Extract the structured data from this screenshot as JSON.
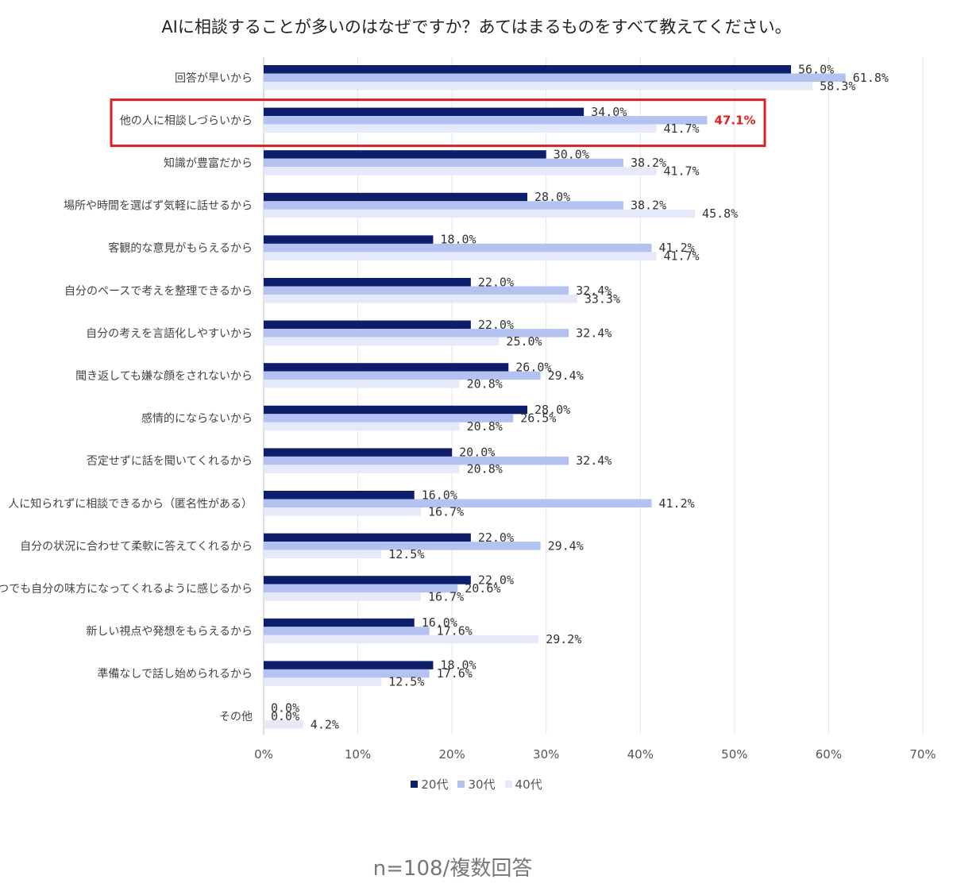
{
  "chart_data": {
    "type": "bar",
    "orientation": "horizontal",
    "title": "AIに相談することが多いのはなぜですか？あてはまるものをすべて教えてください。",
    "categories": [
      "回答が早いから",
      "他の人に相談しづらいから",
      "知識が豊富だから",
      "場所や時間を選ばず気軽に話せるから",
      "客観的な意見がもらえるから",
      "自分のペースで考えを整理できるから",
      "自分の考えを言語化しやすいから",
      "聞き返しても嫌な顔をされないから",
      "感情的にならないから",
      "否定せずに話を聞いてくれるから",
      "人に知られずに相談できるから（匿名性がある）",
      "自分の状況に合わせて柔軟に答えてくれるから",
      "いつでも自分の味方になってくれるように感じるから",
      "新しい視点や発想をもらえるから",
      "準備なしで話し始められるから",
      "その他"
    ],
    "series": [
      {
        "name": "20代",
        "color": "#0f1e6b",
        "values": [
          56.0,
          34.0,
          30.0,
          28.0,
          18.0,
          22.0,
          22.0,
          26.0,
          28.0,
          20.0,
          16.0,
          22.0,
          22.0,
          16.0,
          18.0,
          0.0
        ]
      },
      {
        "name": "30代",
        "color": "#b4c2f2",
        "values": [
          61.8,
          47.1,
          38.2,
          38.2,
          41.2,
          32.4,
          32.4,
          29.4,
          26.5,
          32.4,
          41.2,
          29.4,
          20.6,
          17.6,
          17.6,
          0.0
        ]
      },
      {
        "name": "40代",
        "color": "#e6e9f9",
        "values": [
          58.3,
          41.7,
          41.7,
          45.8,
          41.7,
          33.3,
          25.0,
          20.8,
          20.8,
          20.8,
          16.7,
          12.5,
          16.7,
          29.2,
          12.5,
          4.2
        ]
      }
    ],
    "value_suffix": "%",
    "xlim": [
      0,
      70
    ],
    "xticks": [
      "0%",
      "10%",
      "20%",
      "30%",
      "40%",
      "50%",
      "60%",
      "70%"
    ],
    "grid": true,
    "legend_position": "bottom",
    "highlight": {
      "category_index": 1,
      "series_index": 1,
      "color": "#e02020"
    }
  },
  "footnote": "n=108/複数回答"
}
